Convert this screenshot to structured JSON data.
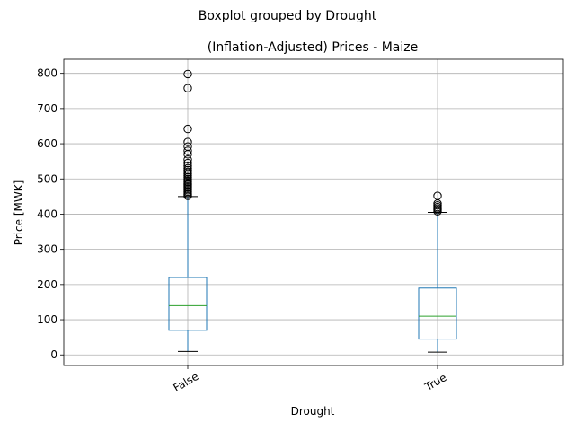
{
  "chart_data": {
    "type": "box",
    "suptitle": "Boxplot grouped by Drought",
    "title": "(Inflation-Adjusted) Prices - Maize",
    "xlabel": "Drought",
    "ylabel": "Price [MWK]",
    "ylim": [
      -30,
      840
    ],
    "yticks": [
      0,
      100,
      200,
      300,
      400,
      500,
      600,
      700,
      800
    ],
    "grid": true,
    "categories": [
      "False",
      "True"
    ],
    "boxes": [
      {
        "category": "False",
        "whisker_low": 10,
        "q1": 70,
        "median": 140,
        "q3": 220,
        "whisker_high": 450,
        "outliers": [
          452,
          456,
          460,
          464,
          468,
          472,
          476,
          480,
          484,
          488,
          492,
          496,
          500,
          505,
          510,
          515,
          520,
          525,
          530,
          537,
          545,
          555,
          570,
          580,
          592,
          605,
          642,
          758,
          798
        ]
      },
      {
        "category": "True",
        "whisker_low": 8,
        "q1": 45,
        "median": 110,
        "q3": 190,
        "whisker_high": 405,
        "outliers": [
          408,
          412,
          416,
          420,
          425,
          430,
          452
        ]
      }
    ],
    "colors": {
      "box": "#1f77b4",
      "median": "#2ca02c",
      "whisker_cap": "#000000",
      "outlier": "#000000",
      "grid": "#b0b0b0"
    }
  }
}
